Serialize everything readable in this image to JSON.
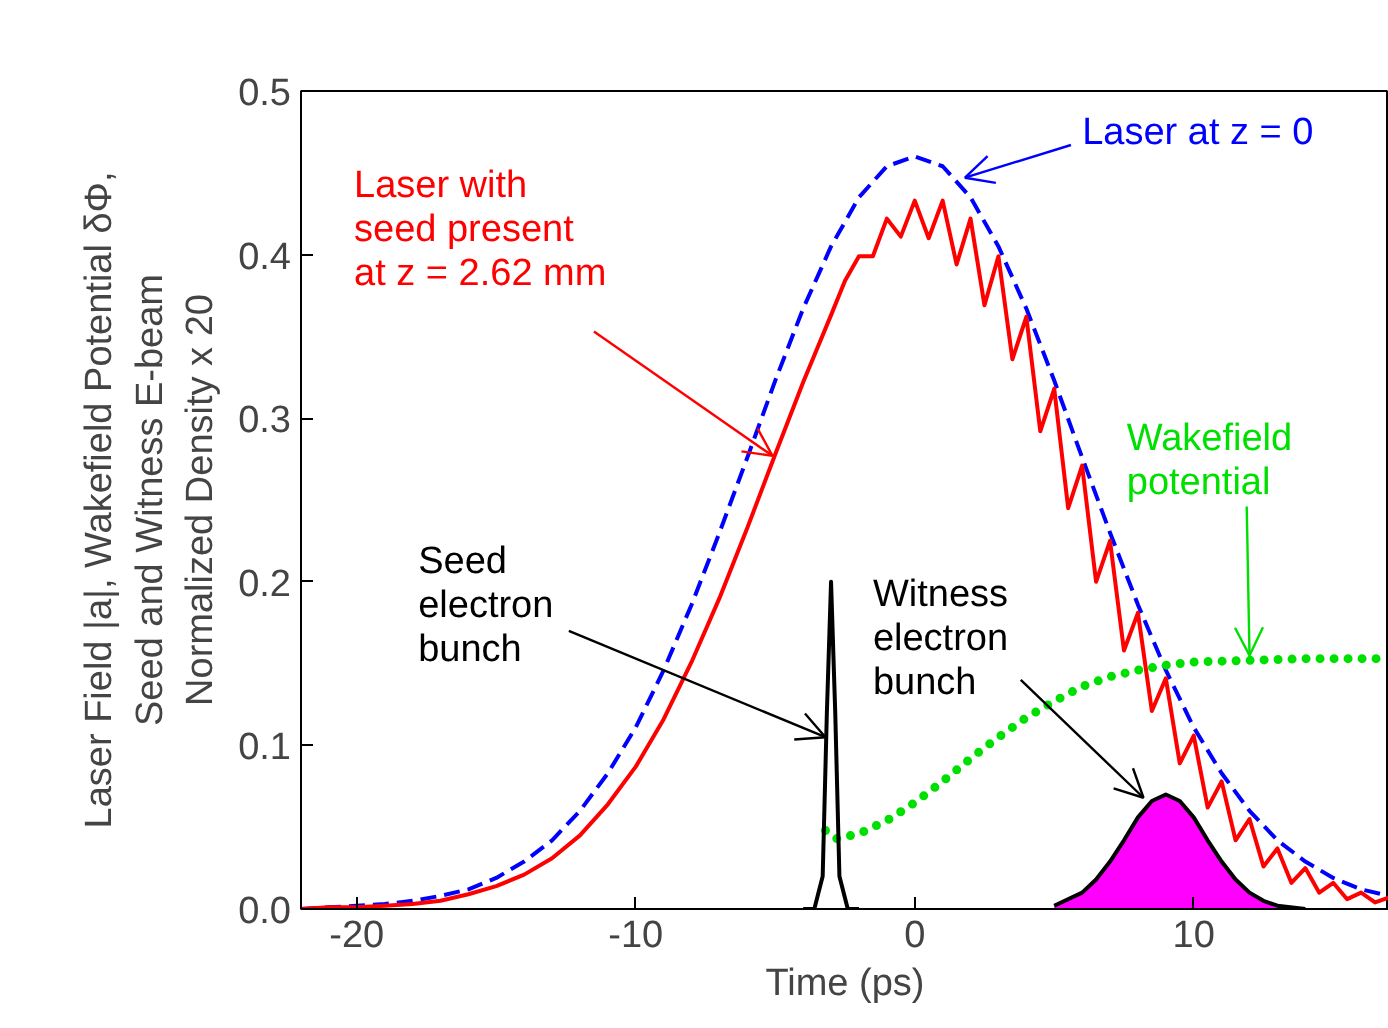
{
  "chart_data": {
    "type": "line",
    "xlabel": "Time (ps)",
    "ylabel": "Laser Field |a|, Wakefield Potential δΦ,\nSeed and Witness E-beam\nNormalized Density x 20",
    "xlim": [
      -22,
      17
    ],
    "ylim": [
      0,
      0.5
    ],
    "xticks": [
      -20,
      -10,
      0,
      10
    ],
    "yticks": [
      {
        "value": 0,
        "label": "0.0"
      },
      {
        "value": 0.1,
        "label": "0.1"
      },
      {
        "value": 0.2,
        "label": "0.2"
      },
      {
        "value": 0.3,
        "label": "0.3"
      },
      {
        "value": 0.4,
        "label": "0.4"
      },
      {
        "value": 0.5,
        "label": "0.5"
      }
    ],
    "grid": false,
    "series": [
      {
        "color": "#0000ff",
        "line_style": "dashed",
        "x": [
          -22,
          -21,
          -20,
          -19,
          -18,
          -17,
          -16,
          -15,
          -14,
          -13,
          -12,
          -11,
          -10,
          -9,
          -8,
          -7,
          -6,
          -5,
          -4,
          -3,
          -2,
          -1,
          0,
          1,
          2,
          3,
          4,
          5,
          6,
          7,
          8,
          9,
          10,
          11,
          12,
          13,
          14,
          15,
          16,
          17
        ],
        "values": [
          0.0,
          0.001,
          0.002,
          0.003,
          0.005,
          0.008,
          0.012,
          0.019,
          0.029,
          0.042,
          0.06,
          0.083,
          0.111,
          0.146,
          0.186,
          0.23,
          0.276,
          0.323,
          0.367,
          0.405,
          0.435,
          0.454,
          0.46,
          0.454,
          0.435,
          0.405,
          0.367,
          0.323,
          0.276,
          0.23,
          0.186,
          0.146,
          0.111,
          0.083,
          0.06,
          0.042,
          0.029,
          0.019,
          0.012,
          0.008
        ]
      },
      {
        "color": "#ff0000",
        "line_style": "solid",
        "x": [
          -22,
          -21,
          -20,
          -19,
          -18,
          -17,
          -16,
          -15,
          -14,
          -13,
          -12,
          -11,
          -10,
          -9,
          -8,
          -7,
          -6,
          -5,
          -4,
          -3,
          -2.5,
          -2,
          -1.5,
          -1,
          -0.5,
          0,
          0.5,
          1,
          1.5,
          2,
          2.5,
          3,
          3.5,
          4,
          4.5,
          5,
          5.5,
          6,
          6.5,
          7,
          7.5,
          8,
          8.5,
          9,
          9.5,
          10,
          10.5,
          11,
          11.5,
          12,
          12.5,
          13,
          13.5,
          14,
          14.5,
          15,
          15.5,
          16,
          16.5,
          17
        ],
        "values": [
          0.0,
          0.001,
          0.001,
          0.002,
          0.003,
          0.005,
          0.009,
          0.014,
          0.021,
          0.031,
          0.045,
          0.064,
          0.087,
          0.116,
          0.151,
          0.19,
          0.233,
          0.278,
          0.322,
          0.363,
          0.384,
          0.399,
          0.399,
          0.422,
          0.411,
          0.433,
          0.41,
          0.433,
          0.394,
          0.422,
          0.369,
          0.399,
          0.336,
          0.362,
          0.292,
          0.318,
          0.245,
          0.271,
          0.2,
          0.225,
          0.158,
          0.181,
          0.121,
          0.141,
          0.089,
          0.106,
          0.062,
          0.078,
          0.042,
          0.055,
          0.026,
          0.037,
          0.016,
          0.025,
          0.01,
          0.016,
          0.006,
          0.01,
          0.004,
          0.007
        ]
      },
      {
        "color": "#00e000",
        "line_style": "dotted",
        "x": [
          -3.2,
          -2.8,
          -2,
          -1,
          0,
          1,
          2,
          3,
          4,
          5,
          6,
          7,
          8,
          9,
          10,
          12,
          14,
          17
        ],
        "values": [
          0.048,
          0.043,
          0.046,
          0.054,
          0.065,
          0.078,
          0.092,
          0.105,
          0.117,
          0.127,
          0.136,
          0.142,
          0.146,
          0.149,
          0.151,
          0.152,
          0.153,
          0.153
        ]
      },
      {
        "color": "#000000",
        "line_style": "solid",
        "x": [
          -4,
          -3.6,
          -3.3,
          -3.15,
          -3,
          -2.85,
          -2.7,
          -2.4,
          -2
        ],
        "values": [
          0,
          0,
          0.02,
          0.12,
          0.2,
          0.12,
          0.02,
          0,
          0
        ]
      },
      {
        "type": "area",
        "color": "#ff00ff",
        "x": [
          5,
          6,
          6.5,
          7,
          7.5,
          8,
          8.5,
          9,
          9.5,
          10,
          10.5,
          11,
          11.5,
          12,
          12.5,
          13,
          14
        ],
        "values": [
          0.002,
          0.01,
          0.018,
          0.029,
          0.042,
          0.056,
          0.066,
          0.07,
          0.066,
          0.056,
          0.042,
          0.029,
          0.018,
          0.01,
          0.005,
          0.002,
          0
        ]
      }
    ],
    "annotations": [
      {
        "text": "Laser with\nseed present\nat z = 2.62 mm",
        "x": -5.1,
        "y": 0.277
      },
      {
        "text": "Laser at z = 0",
        "x": 1.8,
        "y": 0.447
      },
      {
        "text": "Wakefield\npotential",
        "x": 12,
        "y": 0.155
      },
      {
        "text": "Seed\nelectron\nbunch",
        "x": -3.2,
        "y": 0.105
      },
      {
        "text": "Witness\nelectron\nbunch",
        "x": 8.2,
        "y": 0.068
      }
    ]
  }
}
